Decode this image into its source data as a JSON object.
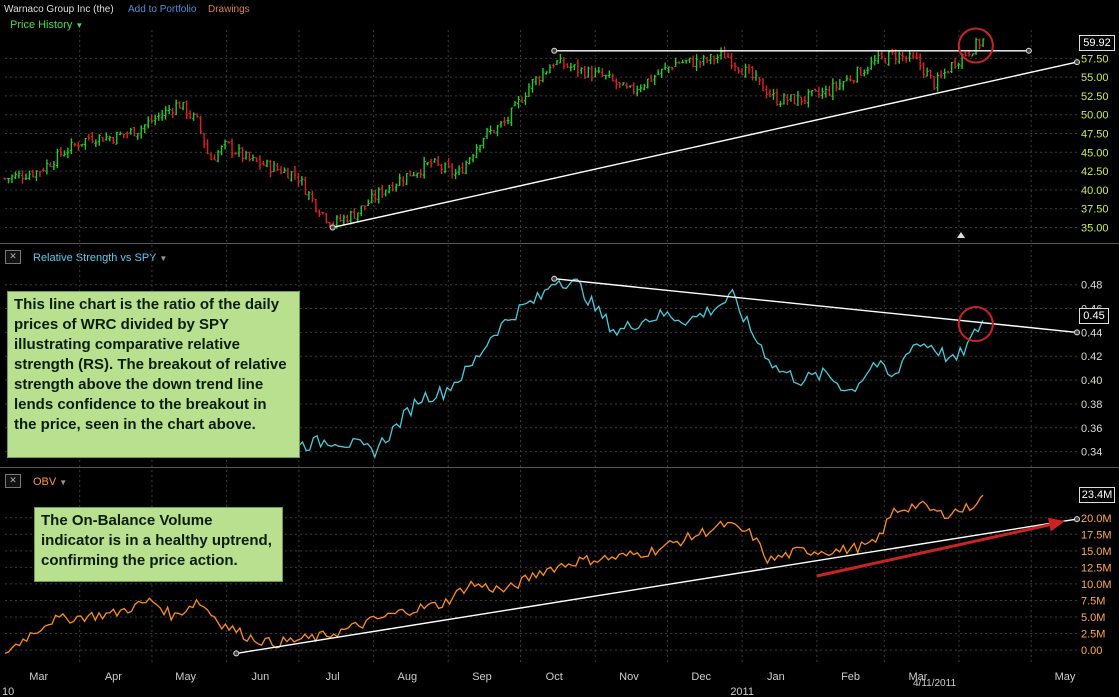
{
  "header": {
    "company": "Warnaco Group Inc (the)",
    "add_portfolio": "Add to Portfolio",
    "drawings": "Drawings"
  },
  "panels": {
    "price": {
      "title": "Price History",
      "last_value": "59.92"
    },
    "rs": {
      "title": "Relative Strength vs SPY",
      "last_value": "0.45"
    },
    "obv": {
      "title": "OBV",
      "last_value": "23.4M"
    }
  },
  "annotations": {
    "rs_note": "This line chart is the ratio of the daily prices of WRC divided by SPY illustrating comparative relative strength (RS). The breakout of relative strength above the down trend line lends confidence to the breakout in the price, seen in the chart above.",
    "obv_note": "The On-Balance Volume indicator is in a healthy uptrend, confirming the price action."
  },
  "colors": {
    "price_up": "#22cc22",
    "price_down": "#dd2222",
    "rs_line": "#44ccdd",
    "obv_line": "#ff8c1a",
    "trendline": "#ffffff",
    "circle": "#cc2222",
    "arrow": "#cc2222",
    "axis_price": "#ccee44",
    "axis_rs": "#ddddcc",
    "axis_obv": "#ffaa44",
    "title_price": "#44dd44",
    "title_rs": "#55ccee",
    "title_obv": "#ff9933",
    "link": "#4a8fd8",
    "drawings": "#d9822b"
  },
  "x_axis": {
    "month_labels": [
      "Mar",
      "Apr",
      "May",
      "Jun",
      "Jul",
      "Aug",
      "Sep",
      "Oct",
      "Nov",
      "Dec",
      "Jan",
      "Feb",
      "Mar",
      "May"
    ],
    "year_labels": [
      "10",
      "2011"
    ],
    "date_label": "4/11/2011"
  },
  "chart_data": [
    {
      "type": "candlestick",
      "name": "Price History",
      "x_range": [
        "2010-03-01",
        "2011-05-20"
      ],
      "ylim": [
        34,
        61
      ],
      "yticks": [
        "35.00",
        "37.50",
        "40.00",
        "42.50",
        "45.00",
        "47.50",
        "50.00",
        "52.50",
        "55.00",
        "57.50"
      ],
      "last": 59.92,
      "points": [
        [
          "2010-03-01",
          41.5
        ],
        [
          "2010-03-15",
          42.5
        ],
        [
          "2010-03-25",
          45
        ],
        [
          "2010-04-05",
          47
        ],
        [
          "2010-04-15",
          47
        ],
        [
          "2010-04-25",
          48
        ],
        [
          "2010-05-05",
          50
        ],
        [
          "2010-05-12",
          51.5
        ],
        [
          "2010-05-20",
          49
        ],
        [
          "2010-05-25",
          44
        ],
        [
          "2010-06-01",
          46
        ],
        [
          "2010-06-10",
          44
        ],
        [
          "2010-06-20",
          43
        ],
        [
          "2010-06-30",
          42
        ],
        [
          "2010-07-08",
          38
        ],
        [
          "2010-07-15",
          35.5
        ],
        [
          "2010-07-25",
          37
        ],
        [
          "2010-08-05",
          40
        ],
        [
          "2010-08-15",
          42
        ],
        [
          "2010-08-25",
          43.5
        ],
        [
          "2010-09-05",
          42
        ],
        [
          "2010-09-15",
          47
        ],
        [
          "2010-09-25",
          49
        ],
        [
          "2010-10-05",
          54
        ],
        [
          "2010-10-15",
          57
        ],
        [
          "2010-10-25",
          56
        ],
        [
          "2010-11-05",
          55
        ],
        [
          "2010-11-15",
          53
        ],
        [
          "2010-11-25",
          55
        ],
        [
          "2010-12-05",
          57
        ],
        [
          "2010-12-15",
          57
        ],
        [
          "2010-12-25",
          58
        ],
        [
          "2011-01-05",
          55
        ],
        [
          "2011-01-15",
          52
        ],
        [
          "2011-01-25",
          52
        ],
        [
          "2011-02-05",
          53
        ],
        [
          "2011-02-15",
          55
        ],
        [
          "2011-02-25",
          57
        ],
        [
          "2011-03-05",
          58
        ],
        [
          "2011-03-15",
          57
        ],
        [
          "2011-03-22",
          54
        ],
        [
          "2011-03-30",
          57
        ],
        [
          "2011-04-05",
          58.5
        ],
        [
          "2011-04-11",
          59.9
        ]
      ],
      "trendlines": [
        {
          "from": [
            "2010-07-15",
            35
          ],
          "to": [
            "2011-05-20",
            57
          ]
        },
        {
          "from": [
            "2010-10-15",
            58.5
          ],
          "to": [
            "2011-04-30",
            58.5
          ]
        }
      ]
    },
    {
      "type": "line",
      "name": "Relative Strength vs SPY",
      "x_range": [
        "2010-03-01",
        "2011-05-20"
      ],
      "ylim": [
        0.333,
        0.494
      ],
      "yticks": [
        "0.34",
        "0.36",
        "0.38",
        "0.40",
        "0.42",
        "0.44",
        "0.46",
        "0.48"
      ],
      "last": 0.45,
      "points": [
        [
          "2010-07-01",
          0.345
        ],
        [
          "2010-07-15",
          0.35
        ],
        [
          "2010-07-25",
          0.345
        ],
        [
          "2010-08-01",
          0.34
        ],
        [
          "2010-08-10",
          0.36
        ],
        [
          "2010-08-20",
          0.385
        ],
        [
          "2010-08-30",
          0.39
        ],
        [
          "2010-09-10",
          0.41
        ],
        [
          "2010-09-20",
          0.44
        ],
        [
          "2010-10-01",
          0.46
        ],
        [
          "2010-10-10",
          0.47
        ],
        [
          "2010-10-15",
          0.485
        ],
        [
          "2010-10-25",
          0.48
        ],
        [
          "2010-11-01",
          0.46
        ],
        [
          "2010-11-10",
          0.44
        ],
        [
          "2010-11-20",
          0.45
        ],
        [
          "2010-11-30",
          0.455
        ],
        [
          "2010-12-10",
          0.45
        ],
        [
          "2010-12-20",
          0.46
        ],
        [
          "2010-12-28",
          0.47
        ],
        [
          "2011-01-05",
          0.44
        ],
        [
          "2011-01-15",
          0.41
        ],
        [
          "2011-01-25",
          0.4
        ],
        [
          "2011-02-05",
          0.405
        ],
        [
          "2011-02-15",
          0.39
        ],
        [
          "2011-02-25",
          0.415
        ],
        [
          "2011-03-05",
          0.4
        ],
        [
          "2011-03-12",
          0.43
        ],
        [
          "2011-03-20",
          0.43
        ],
        [
          "2011-03-30",
          0.415
        ],
        [
          "2011-04-05",
          0.43
        ],
        [
          "2011-04-11",
          0.45
        ]
      ],
      "trendlines": [
        {
          "from": [
            "2010-10-15",
            0.485
          ],
          "to": [
            "2011-05-20",
            0.44
          ]
        }
      ]
    },
    {
      "type": "line",
      "name": "OBV",
      "x_range": [
        "2010-03-01",
        "2011-05-20"
      ],
      "ylim": [
        -1.5,
        24.5
      ],
      "y_unit": "M",
      "yticks": [
        "0.00",
        "2.5M",
        "5.0M",
        "7.5M",
        "10.0M",
        "12.5M",
        "15.0M",
        "17.5M",
        "20.0M"
      ],
      "last": 23.4,
      "points": [
        [
          "2010-03-01",
          -0.5
        ],
        [
          "2010-03-10",
          2
        ],
        [
          "2010-03-20",
          4.5
        ],
        [
          "2010-04-01",
          5
        ],
        [
          "2010-04-15",
          5.5
        ],
        [
          "2010-05-01",
          7.5
        ],
        [
          "2010-05-10",
          5
        ],
        [
          "2010-05-20",
          7.5
        ],
        [
          "2010-05-30",
          4
        ],
        [
          "2010-06-10",
          2
        ],
        [
          "2010-06-20",
          1
        ],
        [
          "2010-06-30",
          1.5
        ],
        [
          "2010-07-10",
          2
        ],
        [
          "2010-07-20",
          3
        ],
        [
          "2010-08-01",
          4.5
        ],
        [
          "2010-08-15",
          6
        ],
        [
          "2010-08-30",
          7
        ],
        [
          "2010-09-10",
          10
        ],
        [
          "2010-09-25",
          9
        ],
        [
          "2010-10-10",
          12
        ],
        [
          "2010-10-25",
          13.5
        ],
        [
          "2010-11-10",
          14
        ],
        [
          "2010-11-25",
          15
        ],
        [
          "2010-12-10",
          17
        ],
        [
          "2010-12-25",
          19
        ],
        [
          "2011-01-05",
          17.5
        ],
        [
          "2011-01-12",
          13.5
        ],
        [
          "2011-01-25",
          15
        ],
        [
          "2011-02-10",
          15
        ],
        [
          "2011-02-25",
          16
        ],
        [
          "2011-03-05",
          21
        ],
        [
          "2011-03-15",
          22
        ],
        [
          "2011-03-25",
          20.5
        ],
        [
          "2011-04-05",
          21.5
        ],
        [
          "2011-04-11",
          23.4
        ]
      ],
      "trendlines": [
        {
          "from": [
            "2010-06-05",
            -0.5
          ],
          "to": [
            "2011-05-20",
            19.8
          ]
        }
      ],
      "arrow": {
        "from": [
          "2011-02-01",
          11.2
        ],
        "to": [
          "2011-05-15",
          19.5
        ]
      }
    }
  ]
}
